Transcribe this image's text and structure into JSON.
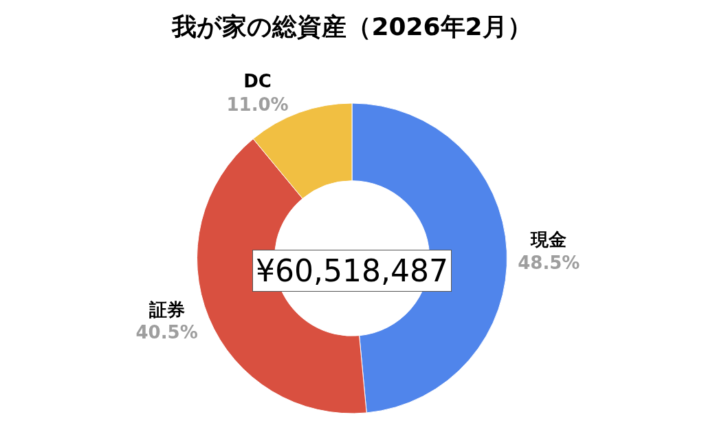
{
  "chart_data": {
    "type": "donut",
    "title": "我が家の総資産（2026年2月）",
    "categories": [
      "現金",
      "証券",
      "DC"
    ],
    "values": [
      48.5,
      40.5,
      11.0
    ],
    "value_labels": [
      "48.5%",
      "40.5%",
      "11.0%"
    ],
    "colors": [
      "#5085eb",
      "#d95040",
      "#f1bf42"
    ],
    "annotations": [
      "¥60,518,487"
    ],
    "legend": false
  }
}
